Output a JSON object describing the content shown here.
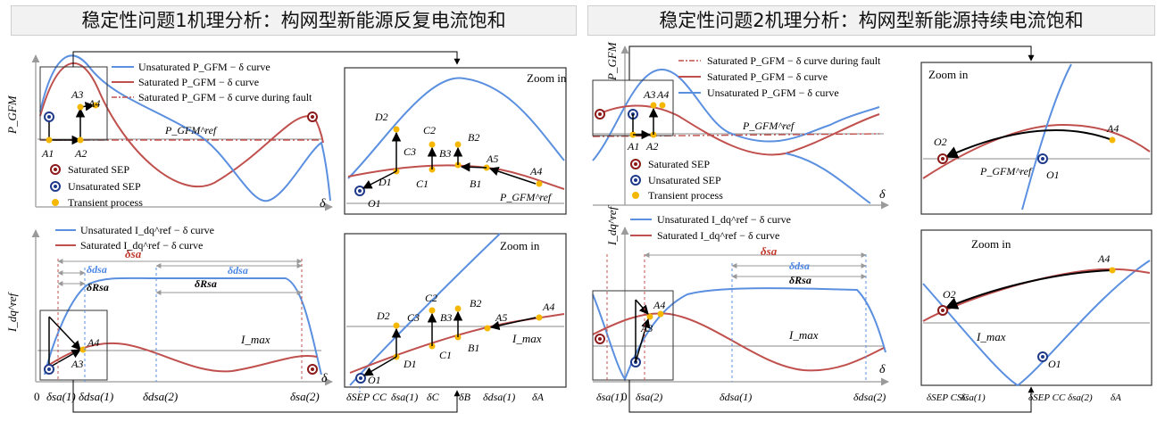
{
  "left": {
    "title": "稳定性问题1机理分析：构网型新能源反复电流饱和",
    "legend_p": [
      "Unsaturated P_GFM − δ curve",
      "Saturated P_GFM − δ curve",
      "Saturated P_GFM − δ curve during fault"
    ],
    "legend_i": [
      "Unsaturated I_dq^ref − δ curve",
      "Saturated I_dq^ref − δ curve"
    ],
    "markers": [
      "Saturated SEP",
      "Unsaturated SEP",
      "Transient process"
    ],
    "zoom": "Zoom in",
    "y_p": "P_GFM",
    "y_i": "I_dq^ref",
    "x": "δ",
    "pref": "P_GFM^ref",
    "imax": "I_max",
    "points_top": [
      "A1",
      "A2",
      "A3",
      "A4"
    ],
    "points_zoom": [
      "O1",
      "D1",
      "D2",
      "C1",
      "C2",
      "C3",
      "B1",
      "B2",
      "B3",
      "A4",
      "A5"
    ],
    "bottom_axis": [
      "0",
      "δsa(1)",
      "δdsa(1)",
      "δdsa(2)",
      "δsa(2)",
      "δSEP CC",
      "δsa(1)",
      "δC",
      "δB",
      "δdsa(1)",
      "δA"
    ],
    "span_labels": [
      "δsa",
      "δdsa",
      "δdsa",
      "δRsa",
      "δRsa"
    ]
  },
  "right": {
    "title": "稳定性问题2机理分析：构网型新能源持续电流饱和",
    "legend_p": [
      "Saturated P_GFM − δ curve during fault",
      "Saturated P_GFM − δ curve",
      "Unsaturated P_GFM − δ curve"
    ],
    "legend_i": [
      "Unsaturated I_dq^ref − δ curve",
      "Saturated I_dq^ref − δ curve"
    ],
    "markers": [
      "Saturated SEP",
      "Unsaturated SEP",
      "Transient process"
    ],
    "zoom": "Zoom in",
    "points": [
      "A1",
      "A2",
      "A3",
      "A4",
      "O1",
      "O2"
    ],
    "bottom_axis": [
      "δsa(1)",
      "0",
      "δsa(2)",
      "δdsa(1)",
      "δdsa(2)",
      "δSEP CSC",
      "δsa(1)",
      "δSEP CC",
      "δsa(2)",
      "δA"
    ],
    "span_labels": [
      "δsa",
      "δdsa",
      "δRsa"
    ]
  }
}
